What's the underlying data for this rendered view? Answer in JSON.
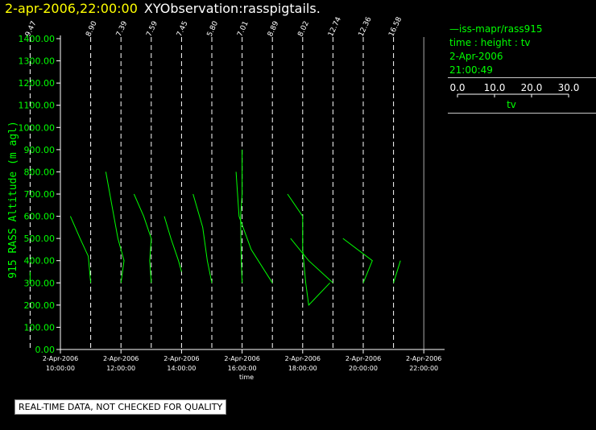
{
  "header": {
    "datetime": "2-apr-2006,22:00:00",
    "observation": "XYObservation:rasspigtails."
  },
  "legend": {
    "series": "iss-mapr/rass915",
    "axes": "time : height : tv",
    "date": "2-Apr-2006",
    "time": "21:00:49",
    "scale_ticks": [
      "0.0",
      "10.0",
      "20.0",
      "30.0"
    ],
    "scale_label": "tv"
  },
  "quality_note": "REAL-TIME DATA, NOT CHECKED FOR QUALITY",
  "colors": {
    "series": "#00ff00",
    "axis": "#ffffff",
    "ylabel": "#00ff00",
    "header_date": "#ffff00"
  },
  "chart_data": {
    "type": "line",
    "ylabel": "915 RASS Altitude (m agl)",
    "xlabel": "time",
    "ylim": [
      0,
      1400
    ],
    "xlim": [
      9.0,
      22.5
    ],
    "grid": false,
    "yticks": [
      "0.00",
      "100.00",
      "200.00",
      "300.00",
      "400.00",
      "500.00",
      "600.00",
      "700.00",
      "800.00",
      "900.00",
      "1000.00",
      "1100.00",
      "1200.00",
      "1300.00",
      "1400.00"
    ],
    "xticks": [
      {
        "x": 10,
        "date": "2-Apr-2006",
        "time": "10:00:00"
      },
      {
        "x": 12,
        "date": "2-Apr-2006",
        "time": "12:00:00"
      },
      {
        "x": 14,
        "date": "2-Apr-2006",
        "time": "14:00:00"
      },
      {
        "x": 16,
        "date": "2-Apr-2006",
        "time": "16:00:00"
      },
      {
        "x": 18,
        "date": "2-Apr-2006",
        "time": "18:00:00"
      },
      {
        "x": 20,
        "date": "2-Apr-2006",
        "time": "20:00:00"
      },
      {
        "x": 22,
        "date": "2-Apr-2006",
        "time": "22:00:00"
      }
    ],
    "profiles": [
      {
        "base": 9.0,
        "label": "9.47",
        "points": [
          [
            0,
            300
          ],
          [
            0,
            350
          ]
        ]
      },
      {
        "base": 11.0,
        "label": "8.90",
        "points": [
          [
            -6.7,
            600
          ],
          [
            -3.5,
            500
          ],
          [
            -0.8,
            420
          ],
          [
            0,
            300
          ]
        ]
      },
      {
        "base": 12.0,
        "label": "7.39",
        "points": [
          [
            -5,
            800
          ],
          [
            -3,
            650
          ],
          [
            -1,
            500
          ],
          [
            1,
            400
          ],
          [
            0,
            300
          ]
        ]
      },
      {
        "base": 13.0,
        "label": "7.59",
        "points": [
          [
            -5.7,
            700
          ],
          [
            -2.5,
            600
          ],
          [
            0,
            500
          ],
          [
            -0.5,
            400
          ],
          [
            0,
            300
          ]
        ]
      },
      {
        "base": 14.0,
        "label": "7.45",
        "points": [
          [
            -5.7,
            600
          ],
          [
            -3.5,
            500
          ],
          [
            -1,
            400
          ],
          [
            0,
            350
          ]
        ]
      },
      {
        "base": 15.0,
        "label": "5.80",
        "points": [
          [
            -6.2,
            700
          ],
          [
            -3,
            550
          ],
          [
            -1.5,
            400
          ],
          [
            0,
            300
          ]
        ]
      },
      {
        "base": 16.0,
        "label": "7.01",
        "points": [
          [
            0,
            900
          ],
          [
            0,
            700
          ],
          [
            -0.5,
            600
          ],
          [
            -0.3,
            400
          ],
          [
            0,
            300
          ]
        ]
      },
      {
        "base": 17.0,
        "label": "8.89",
        "points": [
          [
            -12,
            800
          ],
          [
            -11,
            600
          ],
          [
            -7,
            450
          ],
          [
            0,
            300
          ]
        ]
      },
      {
        "base": 18.0,
        "label": "8.02",
        "points": [
          [
            -5,
            700
          ],
          [
            0,
            600
          ],
          [
            0,
            450
          ],
          [
            1,
            300
          ],
          [
            2,
            200
          ],
          [
            9,
            300
          ]
        ]
      },
      {
        "base": 19.0,
        "label": "12.74",
        "points": [
          [
            -14,
            500
          ],
          [
            -8,
            400
          ],
          [
            0,
            300
          ]
        ]
      },
      {
        "base": 20.0,
        "label": "12.36",
        "points": [
          [
            -6.7,
            500
          ],
          [
            3,
            400
          ],
          [
            0,
            300
          ]
        ]
      },
      {
        "base": 21.0,
        "label": "16.58",
        "points": [
          [
            2.3,
            400
          ],
          [
            0,
            300
          ]
        ]
      },
      {
        "base": 22.0,
        "label": "",
        "points": []
      }
    ]
  }
}
